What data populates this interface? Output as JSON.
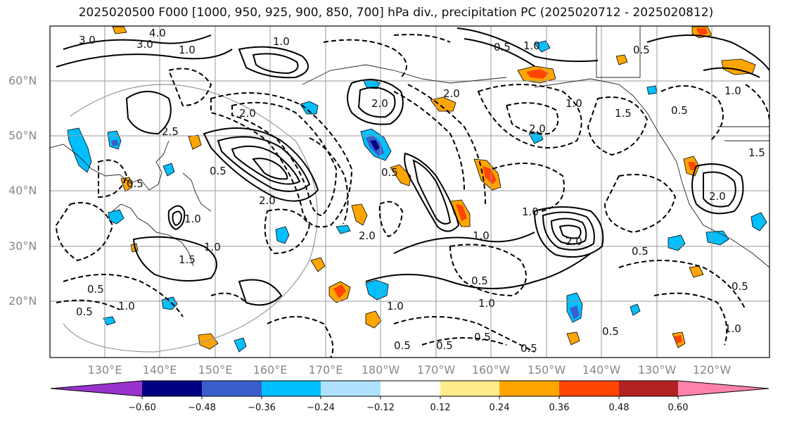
{
  "title": "2025020500 F000 [1000, 950, 925, 900, 850, 700] hPa div., precipitation PC (2025020712 - 2025020812)",
  "lat_labels": [
    "60°N",
    "50°N",
    "40°N",
    "30°N",
    "20°N"
  ],
  "lon_labels": [
    "130°E",
    "140°E",
    "150°E",
    "160°E",
    "170°E",
    "180°W",
    "170°W",
    "160°W",
    "150°W",
    "140°W",
    "130°W",
    "120°W"
  ],
  "colorbar": {
    "ticks": [
      "−0.60",
      "−0.48",
      "−0.36",
      "−0.24",
      "−0.12",
      "0.12",
      "0.24",
      "0.36",
      "0.48",
      "0.60"
    ],
    "colors": [
      "#9932cc",
      "#000080",
      "#3a5fcd",
      "#00bfff",
      "#b0e2ff",
      "#ffffff",
      "#ffec8b",
      "#ffa500",
      "#ff4500",
      "#b22222",
      "#ff82ab"
    ]
  },
  "contour_labels": [
    "3.0",
    "4.0",
    "3.0",
    "1.0",
    "2.0",
    "1.0",
    "0.5",
    "2.0",
    "1.0",
    "2.5",
    "0.5",
    "1.5",
    "2.0",
    "0.5",
    "2.0",
    "2.0",
    "0.5",
    "1.0",
    "0.5",
    "2.0",
    "1.0",
    "1.5",
    "1.0",
    "0.5",
    "1.0",
    "1.0",
    "0.5",
    "0.5",
    "0.5",
    "0.5",
    "0.5",
    "0.5",
    "0.5",
    "1.0",
    "2.0",
    "0.5",
    "1.0",
    "2.0",
    "1.5",
    "1.0",
    "0.5",
    "0.5",
    "1.0",
    "1.0"
  ]
}
